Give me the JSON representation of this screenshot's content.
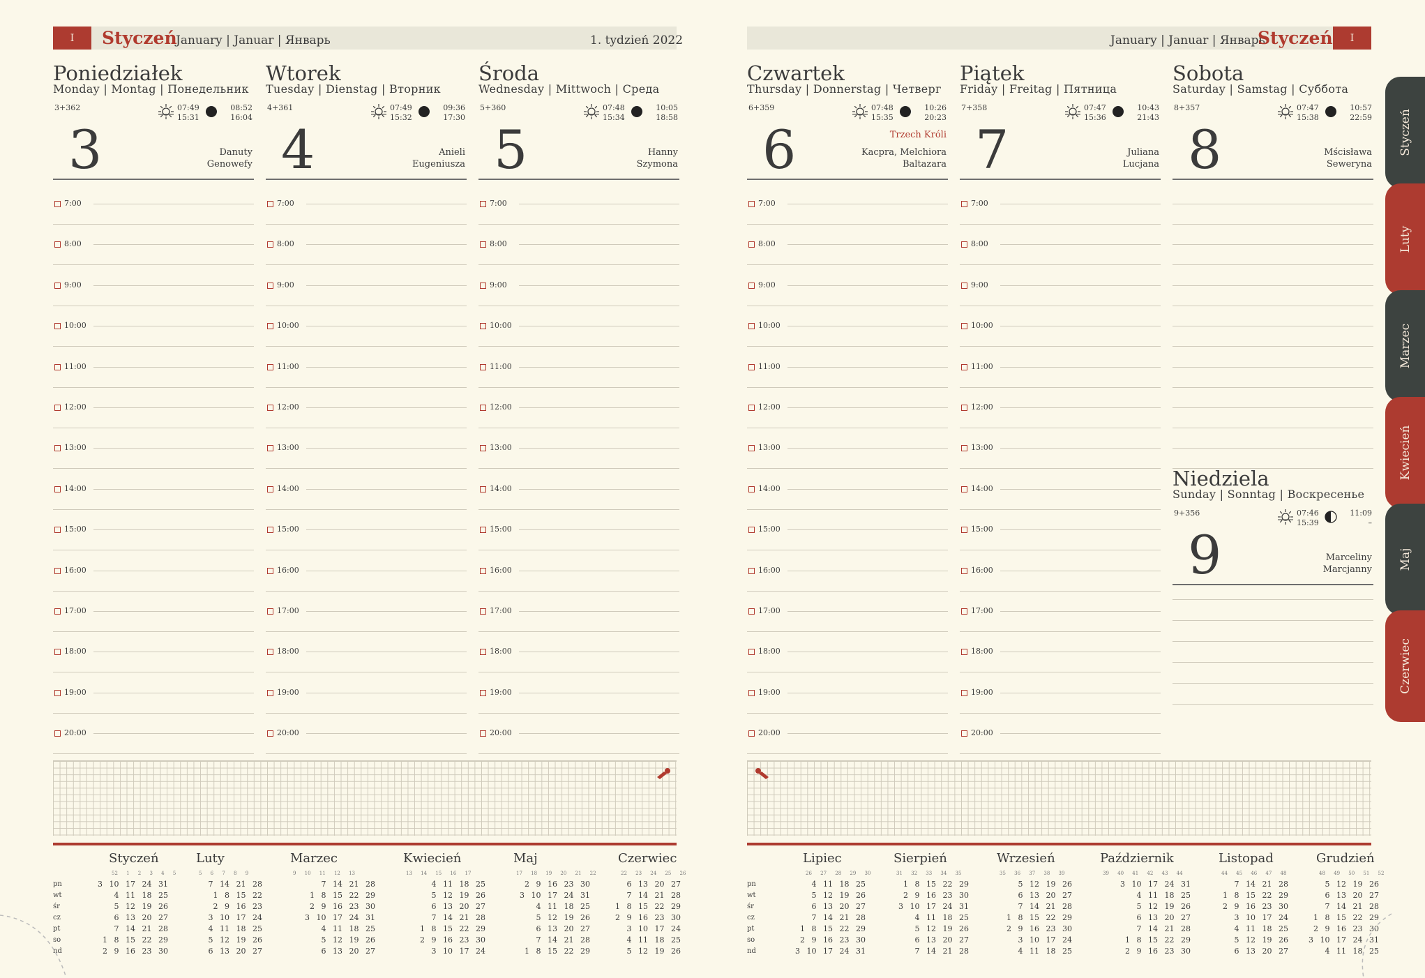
{
  "left": {
    "month_num": "I",
    "month": "Styczeń",
    "langs": "January | Januar | Январь",
    "week": "1.  tydzień 2022"
  },
  "right": {
    "month_num": "I",
    "month": "Styczeń",
    "langs": "January | Januar | Январь"
  },
  "days": [
    {
      "name": "Poniedziałek",
      "langs": "Monday | Montag | Понедельник",
      "count": "3+362",
      "sun": [
        "07:49",
        "15:31"
      ],
      "moon": [
        "08:52",
        "16:04"
      ],
      "num": "3",
      "holiday": "",
      "names": [
        "Danuty",
        "Genowefy"
      ]
    },
    {
      "name": "Wtorek",
      "langs": "Tuesday | Dienstag | Вторник",
      "count": "4+361",
      "sun": [
        "07:49",
        "15:32"
      ],
      "moon": [
        "09:36",
        "17:30"
      ],
      "num": "4",
      "holiday": "",
      "names": [
        "Anieli",
        "Eugeniusza"
      ]
    },
    {
      "name": "Środa",
      "langs": "Wednesday | Mittwoch | Среда",
      "count": "5+360",
      "sun": [
        "07:48",
        "15:34"
      ],
      "moon": [
        "10:05",
        "18:58"
      ],
      "num": "5",
      "holiday": "",
      "names": [
        "Hanny",
        "Szymona"
      ]
    },
    {
      "name": "Czwartek",
      "langs": "Thursday | Donnerstag | Четверг",
      "count": "6+359",
      "sun": [
        "07:48",
        "15:35"
      ],
      "moon": [
        "10:26",
        "20:23"
      ],
      "num": "6",
      "holiday": "Trzech Króli",
      "names": [
        "Kacpra, Melchiora",
        "Baltazara"
      ]
    },
    {
      "name": "Piątek",
      "langs": "Friday | Freitag | Пятница",
      "count": "7+358",
      "sun": [
        "07:47",
        "15:36"
      ],
      "moon": [
        "10:43",
        "21:43"
      ],
      "num": "7",
      "holiday": "",
      "names": [
        "Juliana",
        "Lucjana"
      ]
    },
    {
      "name": "Sobota",
      "langs": "Saturday | Samstag | Суббота",
      "count": "8+357",
      "sun": [
        "07:47",
        "15:38"
      ],
      "moon": [
        "10:57",
        "22:59"
      ],
      "num": "8",
      "holiday": "",
      "names": [
        "Mścisława",
        "Seweryna"
      ]
    }
  ],
  "sunday": {
    "name": "Niedziela",
    "langs": "Sunday | Sonntag | Воскресенье",
    "count": "9+356",
    "sun": [
      "07:46",
      "15:39"
    ],
    "moon": [
      "11:09",
      "–"
    ],
    "num": "9",
    "names": [
      "Marceliny",
      "Marcjanny"
    ]
  },
  "hours": [
    "7:00",
    "8:00",
    "9:00",
    "10:00",
    "11:00",
    "12:00",
    "13:00",
    "14:00",
    "15:00",
    "16:00",
    "17:00",
    "18:00",
    "19:00",
    "20:00"
  ],
  "day_labels": [
    "pn",
    "wt",
    "śr",
    "cz",
    "pt",
    "so",
    "nd"
  ],
  "mini_left": [
    {
      "title": "Styczeń",
      "weeks": "52 1 2 3 4 5",
      "rows": [
        "3 10 17 24 31",
        "4 11 18 25",
        "5 12 19 26",
        "6 13 20 27",
        "7 14 21 28",
        "1 8 15 22 29",
        "2 9 16 23 30"
      ]
    },
    {
      "title": "Luty",
      "weeks": "5 6 7 8 9",
      "rows": [
        "7 14 21 28",
        "1 8 15 22",
        "2 9 16 23",
        "3 10 17 24",
        "4 11 18 25",
        "5 12 19 26",
        "6 13 20 27"
      ]
    },
    {
      "title": "Marzec",
      "weeks": "9 10 11 12 13",
      "rows": [
        "7 14 21 28",
        "1 8 15 22 29",
        "2 9 16 23 30",
        "3 10 17 24 31",
        "4 11 18 25",
        "5 12 19 26",
        "6 13 20 27"
      ]
    },
    {
      "title": "Kwiecień",
      "weeks": "13 14 15 16 17",
      "rows": [
        "4 11 18 25",
        "5 12 19 26",
        "6 13 20 27",
        "7 14 21 28",
        "1 8 15 22 29",
        "2 9 16 23 30",
        "3 10 17 24"
      ]
    },
    {
      "title": "Maj",
      "weeks": "17 18 19 20 21 22",
      "rows": [
        "2 9 16 23 30",
        "3 10 17 24 31",
        "4 11 18 25",
        "5 12 19 26",
        "6 13 20 27",
        "7 14 21 28",
        "1 8 15 22 29"
      ]
    },
    {
      "title": "Czerwiec",
      "weeks": "22 23 24 25 26",
      "rows": [
        "6 13 20 27",
        "7 14 21 28",
        "1 8 15 22 29",
        "2 9 16 23 30",
        "3 10 17 24",
        "4 11 18 25",
        "5 12 19 26"
      ]
    }
  ],
  "mini_right": [
    {
      "title": "Lipiec",
      "weeks": "26 27 28 29 30",
      "rows": [
        "4 11 18 25",
        "5 12 19 26",
        "6 13 20 27",
        "7 14 21 28",
        "1 8 15 22 29",
        "2 9 16 23 30",
        "3 10 17 24 31"
      ]
    },
    {
      "title": "Sierpień",
      "weeks": "31 32 33 34 35",
      "rows": [
        "1 8 15 22 29",
        "2 9 16 23 30",
        "3 10 17 24 31",
        "4 11 18 25",
        "5 12 19 26",
        "6 13 20 27",
        "7 14 21 28"
      ]
    },
    {
      "title": "Wrzesień",
      "weeks": "35 36 37 38 39",
      "rows": [
        "5 12 19 26",
        "6 13 20 27",
        "7 14 21 28",
        "1 8 15 22 29",
        "2 9 16 23 30",
        "3 10 17 24",
        "4 11 18 25"
      ]
    },
    {
      "title": "Październik",
      "weeks": "39 40 41 42 43 44",
      "rows": [
        "3 10 17 24 31",
        "4 11 18 25",
        "5 12 19 26",
        "6 13 20 27",
        "7 14 21 28",
        "1 8 15 22 29",
        "2 9 16 23 30"
      ]
    },
    {
      "title": "Listopad",
      "weeks": "44 45 46 47 48",
      "rows": [
        "7 14 21 28",
        "1 8 15 22 29",
        "2 9 16 23 30",
        "3 10 17 24",
        "4 11 18 25",
        "5 12 19 26",
        "6 13 20 27"
      ]
    },
    {
      "title": "Grudzień",
      "weeks": "48 49 50 51 52",
      "rows": [
        "5 12 19 26",
        "6 13 20 27",
        "7 14 21 28",
        "1 8 15 22 29",
        "2 9 16 23 30",
        "3 10 17 24 31",
        "4 11 18 25"
      ]
    }
  ],
  "tabs": [
    "Styczeń",
    "Luty",
    "Marzec",
    "Kwiecień",
    "Maj",
    "Czerwiec"
  ],
  "colors": {
    "accent": "#ad3b30",
    "dark_tab": "#3d4340",
    "paper": "#fbf8ea"
  }
}
